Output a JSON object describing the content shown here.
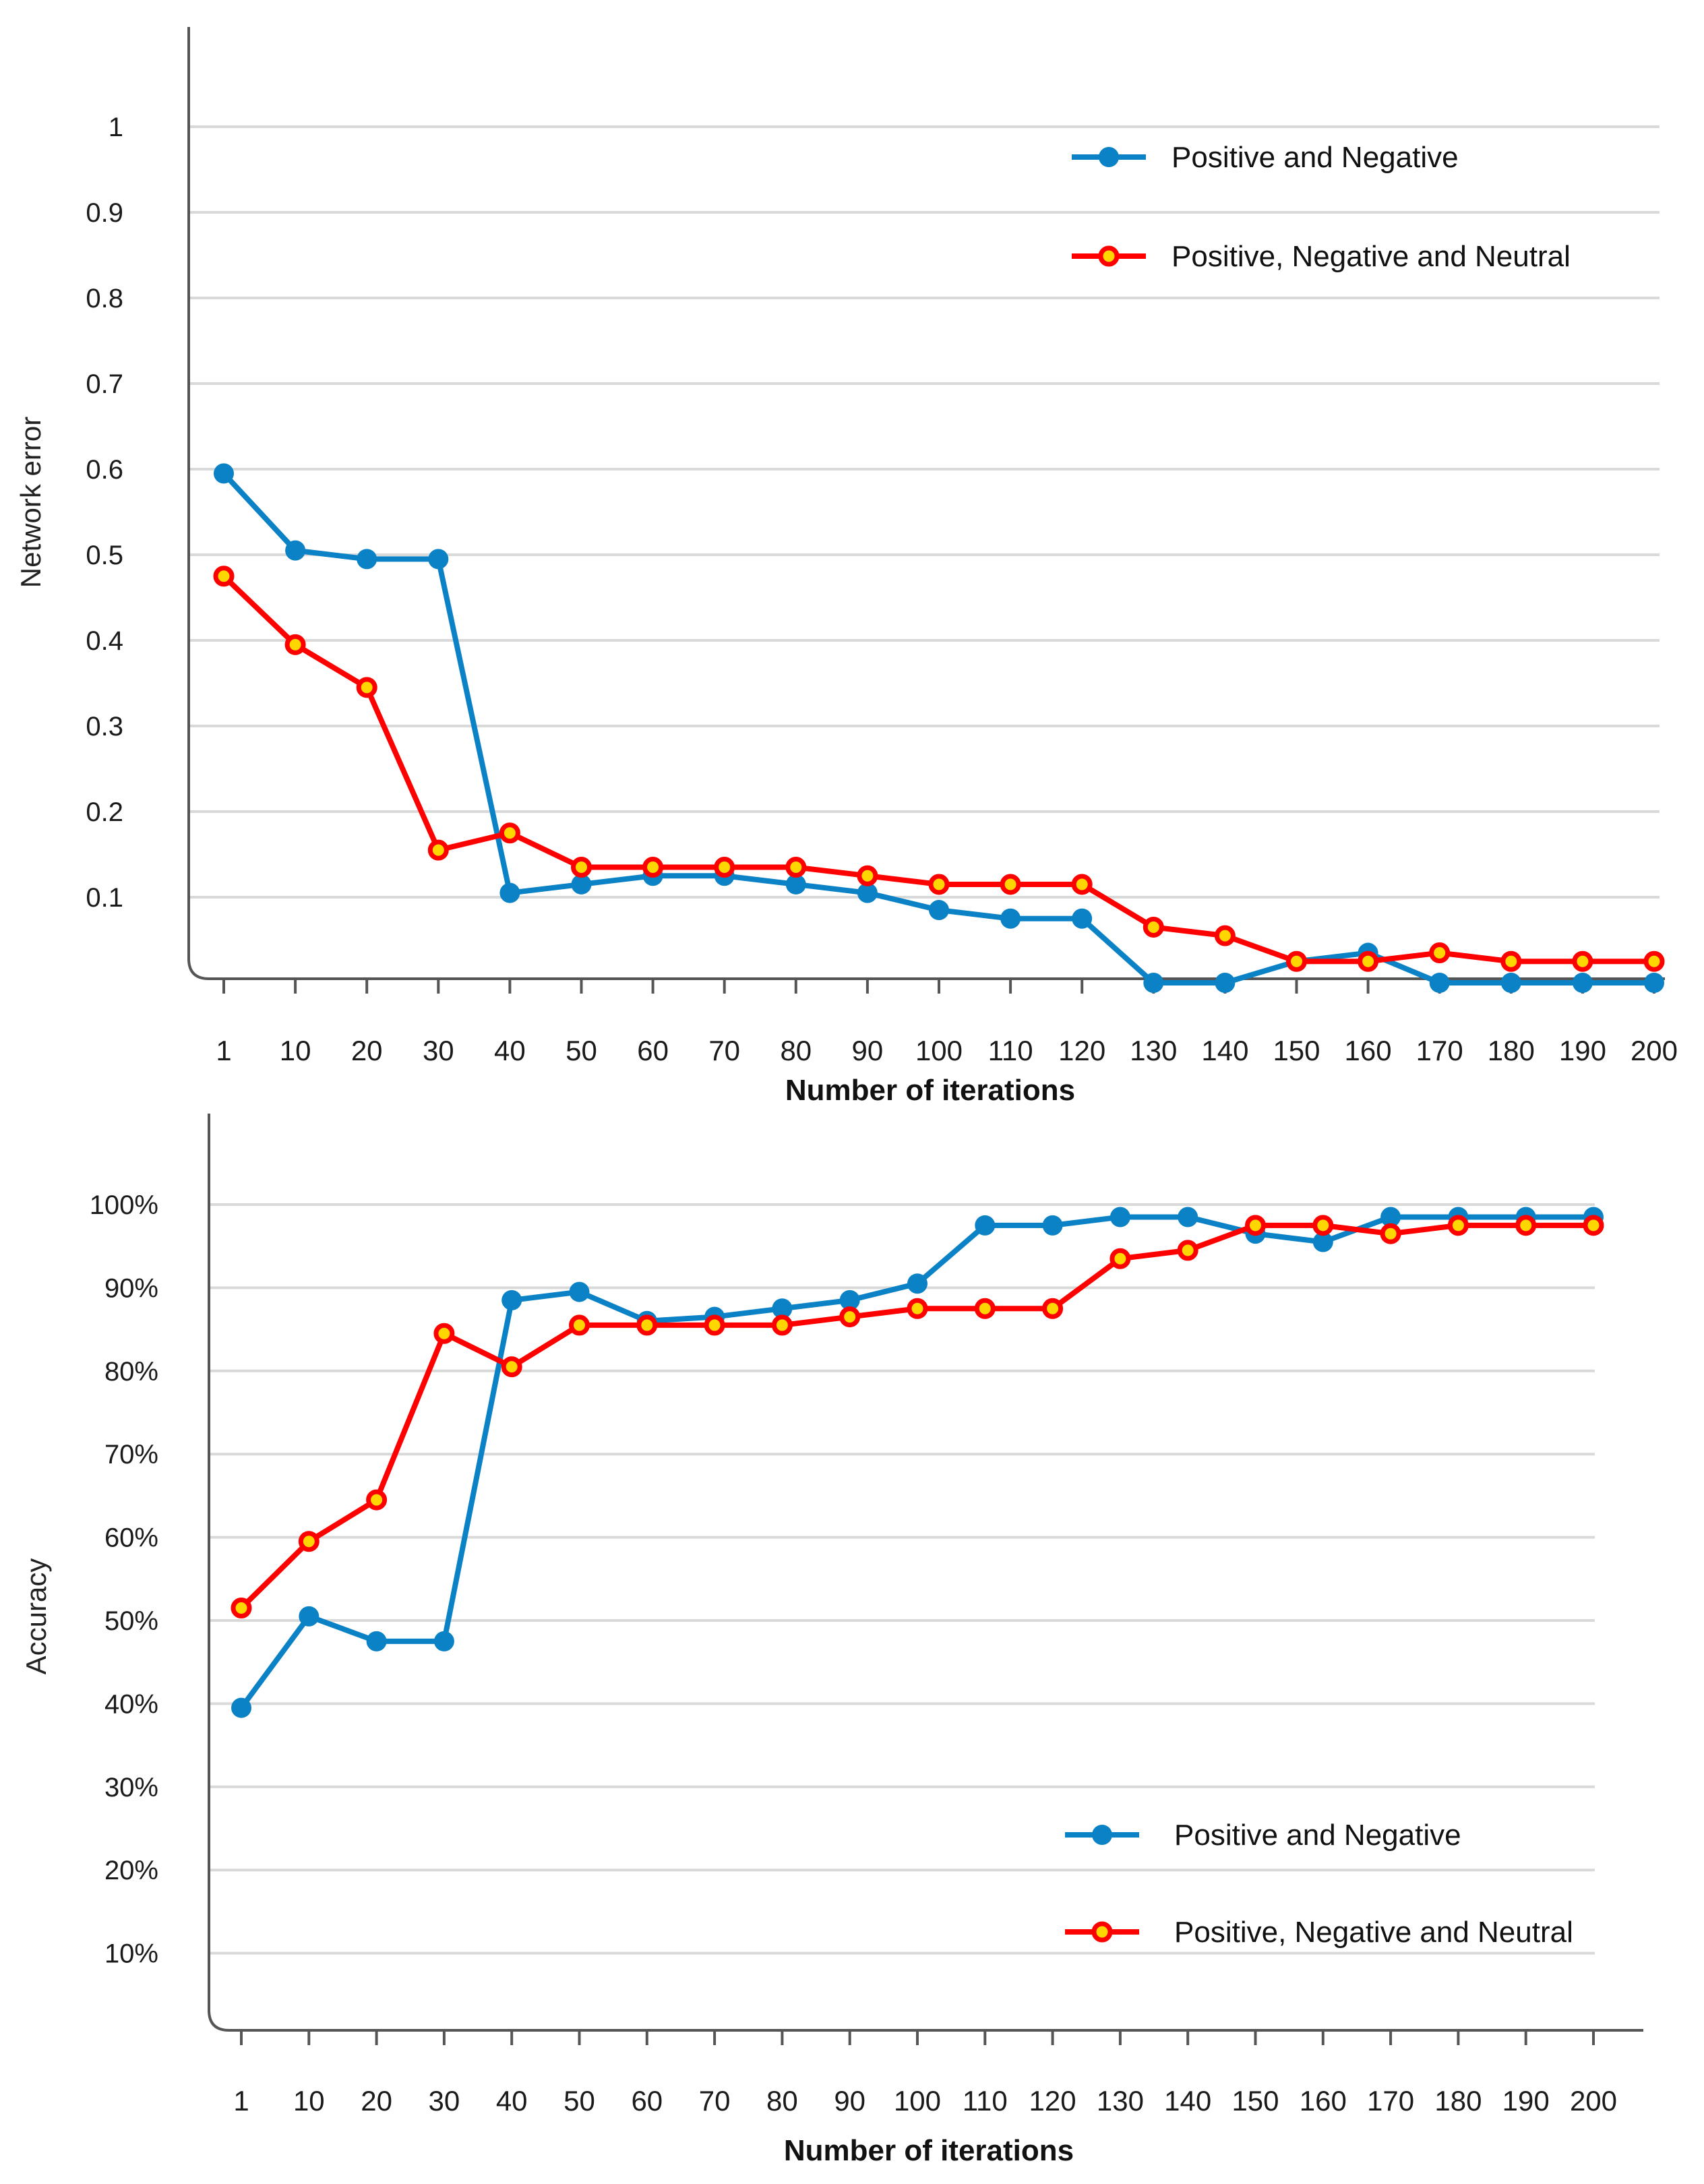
{
  "colors": {
    "series_blue": "#0b82c6",
    "series_red": "#ff0000",
    "marker_red_inner": "#ffd700",
    "grid": "#d9d9d9",
    "axis": "#555555"
  },
  "chart_data": [
    {
      "type": "line",
      "title": "",
      "xlabel": "Number of iterations",
      "ylabel": "Network error",
      "categories": [
        "1",
        "10",
        "20",
        "30",
        "40",
        "50",
        "60",
        "70",
        "80",
        "90",
        "100",
        "110",
        "120",
        "130",
        "140",
        "150",
        "160",
        "170",
        "180",
        "190",
        "200"
      ],
      "ylim": [
        0,
        1.1
      ],
      "y_ticks": [
        {
          "value": 0.1,
          "label": "0.1"
        },
        {
          "value": 0.2,
          "label": "0.2"
        },
        {
          "value": 0.3,
          "label": "0.3"
        },
        {
          "value": 0.4,
          "label": "0.4"
        },
        {
          "value": 0.5,
          "label": "0.5"
        },
        {
          "value": 0.6,
          "label": "0.6"
        },
        {
          "value": 0.7,
          "label": "0.7"
        },
        {
          "value": 0.8,
          "label": "0.8"
        },
        {
          "value": 0.9,
          "label": "0.9"
        },
        {
          "value": 1.0,
          "label": "1"
        }
      ],
      "grid": true,
      "legend_position": "top-right",
      "series": [
        {
          "name": "Positive and Negative",
          "color": "#0b82c6",
          "marker": "filled-circle",
          "values": [
            0.595,
            0.505,
            0.495,
            0.495,
            0.105,
            0.115,
            0.125,
            0.125,
            0.115,
            0.105,
            0.085,
            0.075,
            0.075,
            0.0,
            0.0,
            0.025,
            0.035,
            0.0,
            0.0,
            0.0,
            0.0
          ]
        },
        {
          "name": "Positive, Negative and Neutral",
          "color": "#ff0000",
          "marker": "ring",
          "values": [
            0.475,
            0.395,
            0.345,
            0.155,
            0.175,
            0.135,
            0.135,
            0.135,
            0.135,
            0.125,
            0.115,
            0.115,
            0.115,
            0.065,
            0.055,
            0.025,
            0.025,
            0.035,
            0.025,
            0.025,
            0.025
          ]
        }
      ]
    },
    {
      "type": "line",
      "title": "",
      "xlabel": "Number of iterations",
      "ylabel": "Accuracy",
      "categories": [
        "1",
        "10",
        "20",
        "30",
        "40",
        "50",
        "60",
        "70",
        "80",
        "90",
        "100",
        "110",
        "120",
        "130",
        "140",
        "150",
        "160",
        "170",
        "180",
        "190",
        "200"
      ],
      "ylim": [
        0,
        110
      ],
      "y_ticks": [
        {
          "value": 10,
          "label": "10%"
        },
        {
          "value": 20,
          "label": "20%"
        },
        {
          "value": 30,
          "label": "30%"
        },
        {
          "value": 40,
          "label": "40%"
        },
        {
          "value": 50,
          "label": "50%"
        },
        {
          "value": 60,
          "label": "60%"
        },
        {
          "value": 70,
          "label": "70%"
        },
        {
          "value": 80,
          "label": "80%"
        },
        {
          "value": 90,
          "label": "90%"
        },
        {
          "value": 100,
          "label": "100%"
        }
      ],
      "grid": true,
      "legend_position": "bottom-right",
      "series": [
        {
          "name": "Positive and Negative",
          "color": "#0b82c6",
          "marker": "filled-circle",
          "values": [
            39.5,
            50.5,
            47.5,
            47.5,
            88.5,
            89.5,
            86,
            86.5,
            87.5,
            88.5,
            90.5,
            97.5,
            97.5,
            98.5,
            98.5,
            96.5,
            95.5,
            98.5,
            98.5,
            98.5,
            98.5
          ]
        },
        {
          "name": "Positive, Negative and Neutral",
          "color": "#ff0000",
          "marker": "ring",
          "values": [
            51.5,
            59.5,
            64.5,
            84.5,
            80.5,
            85.5,
            85.5,
            85.5,
            85.5,
            86.5,
            87.5,
            87.5,
            87.5,
            93.5,
            94.5,
            97.5,
            97.5,
            96.5,
            97.5,
            97.5,
            97.5
          ]
        }
      ]
    }
  ]
}
